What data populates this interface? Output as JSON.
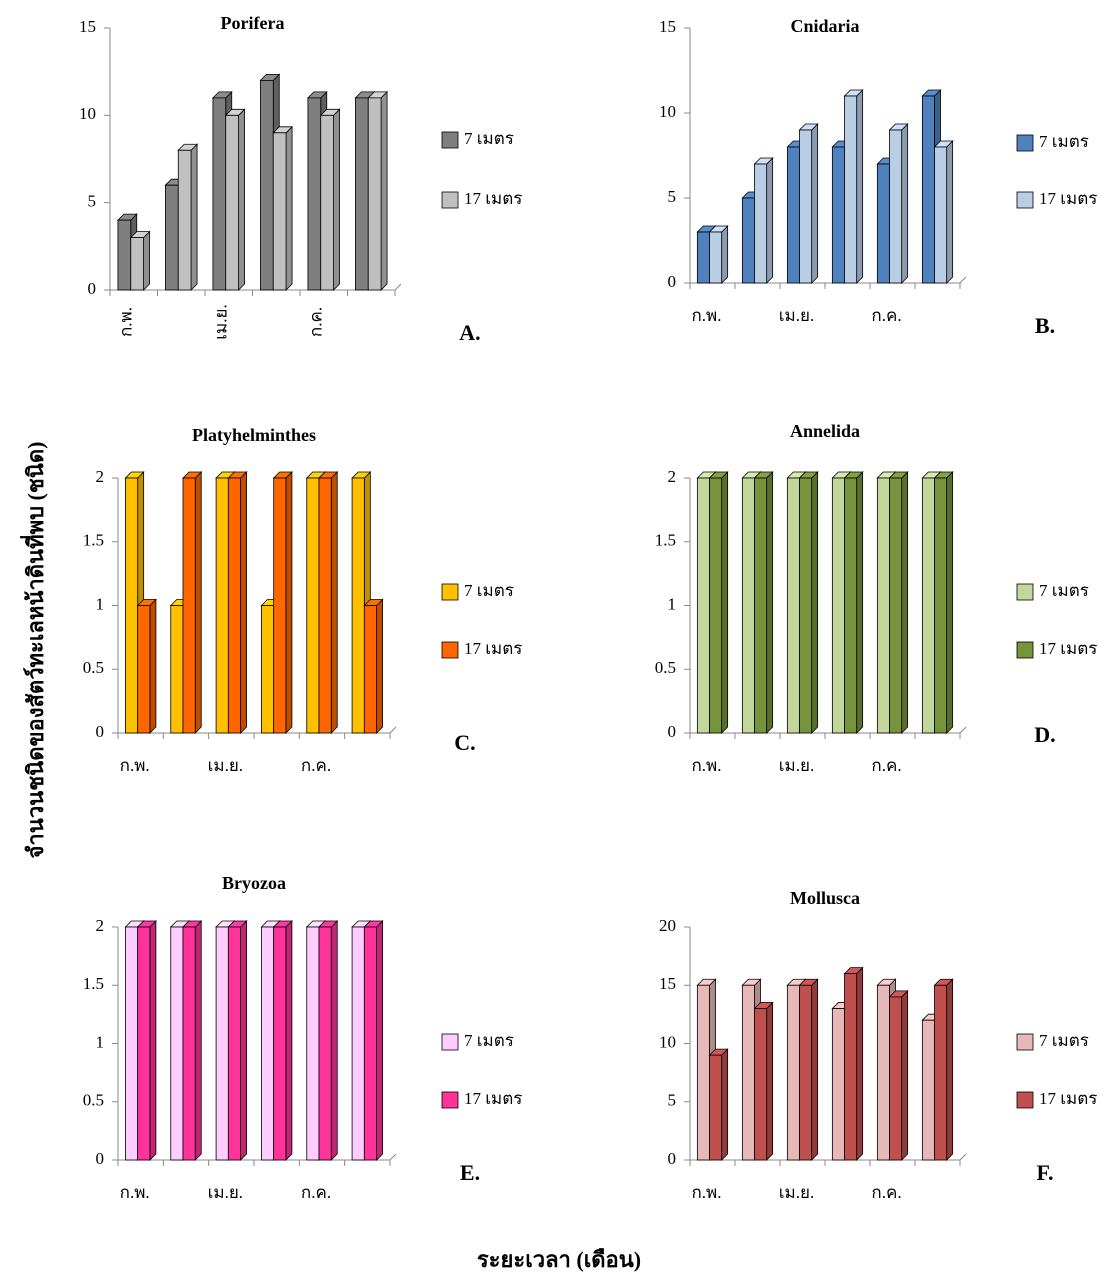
{
  "figure": {
    "ylabel": "จำนวนชนิดของสัตว์ทะเลหน้าดินที่พบ (ชนิด)",
    "xlabel": "ระยะเวลา (เดือน)"
  },
  "chart_data": [
    {
      "type": "bar",
      "title": "Porifera",
      "panel_label": "A.",
      "rotated_xticklabels": true,
      "categories": [
        "ก.พ.",
        null,
        "เม.ย.",
        null,
        "ก.ค.",
        null
      ],
      "series": [
        {
          "name": "7 เมตร",
          "color": "#7f7f7f",
          "values": [
            4,
            6,
            11,
            12,
            11,
            11
          ]
        },
        {
          "name": "17 เมตร",
          "color": "#c0c0c0",
          "values": [
            3,
            8,
            10,
            9,
            10,
            11
          ]
        }
      ],
      "ylim": [
        0,
        15
      ],
      "yticks": [
        0,
        5,
        10,
        15
      ]
    },
    {
      "type": "bar",
      "title": "Cnidaria",
      "panel_label": "B.",
      "rotated_xticklabels": false,
      "categories": [
        "ก.พ.",
        null,
        "เม.ย.",
        null,
        "ก.ค.",
        null
      ],
      "series": [
        {
          "name": "7 เมตร",
          "color": "#4f81bd",
          "values": [
            3,
            5,
            8,
            8,
            7,
            11
          ]
        },
        {
          "name": "17 เมตร",
          "color": "#b9cde5",
          "values": [
            3,
            7,
            9,
            11,
            9,
            8
          ]
        }
      ],
      "ylim": [
        0,
        15
      ],
      "yticks": [
        0,
        5,
        10,
        15
      ]
    },
    {
      "type": "bar",
      "title": "Platyhelminthes",
      "panel_label": "C.",
      "rotated_xticklabels": false,
      "categories": [
        "ก.พ.",
        null,
        "เม.ย.",
        null,
        "ก.ค.",
        null
      ],
      "series": [
        {
          "name": "7 เมตร",
          "color": "#ffc000",
          "values": [
            2,
            1,
            2,
            1,
            2,
            2
          ]
        },
        {
          "name": "17 เมตร",
          "color": "#ff6600",
          "values": [
            1,
            2,
            2,
            2,
            2,
            1
          ]
        }
      ],
      "ylim": [
        0,
        2
      ],
      "yticks": [
        0,
        0.5,
        1,
        1.5,
        2
      ]
    },
    {
      "type": "bar",
      "title": "Annelida",
      "panel_label": "D.",
      "rotated_xticklabels": false,
      "categories": [
        "ก.พ.",
        null,
        "เม.ย.",
        null,
        "ก.ค.",
        null
      ],
      "series": [
        {
          "name": "7 เมตร",
          "color": "#c3d69b",
          "values": [
            2,
            2,
            2,
            2,
            2,
            2
          ]
        },
        {
          "name": "17 เมตร",
          "color": "#77933c",
          "values": [
            2,
            2,
            2,
            2,
            2,
            2
          ]
        }
      ],
      "ylim": [
        0,
        2
      ],
      "yticks": [
        0,
        0.5,
        1,
        1.5,
        2
      ]
    },
    {
      "type": "bar",
      "title": "Bryozoa",
      "panel_label": "E.",
      "rotated_xticklabels": false,
      "categories": [
        "ก.พ.",
        null,
        "เม.ย.",
        null,
        "ก.ค.",
        null
      ],
      "series": [
        {
          "name": "7 เมตร",
          "color": "#ffccff",
          "values": [
            2,
            2,
            2,
            2,
            2,
            2
          ]
        },
        {
          "name": "17 เมตร",
          "color": "#ff3399",
          "values": [
            2,
            2,
            2,
            2,
            2,
            2
          ]
        }
      ],
      "ylim": [
        0,
        2
      ],
      "yticks": [
        0,
        0.5,
        1,
        1.5,
        2
      ]
    },
    {
      "type": "bar",
      "title": "Mollusca",
      "panel_label": "F.",
      "rotated_xticklabels": false,
      "categories": [
        "ก.พ.",
        null,
        "เม.ย.",
        null,
        "ก.ค.",
        null
      ],
      "series": [
        {
          "name": "7 เมตร",
          "color": "#e6b9b8",
          "values": [
            15,
            15,
            15,
            13,
            15,
            12
          ]
        },
        {
          "name": "17 เมตร",
          "color": "#c0504d",
          "values": [
            9,
            13,
            15,
            16,
            14,
            15
          ]
        }
      ],
      "ylim": [
        0,
        20
      ],
      "yticks": [
        0,
        5,
        10,
        15,
        20
      ]
    }
  ]
}
